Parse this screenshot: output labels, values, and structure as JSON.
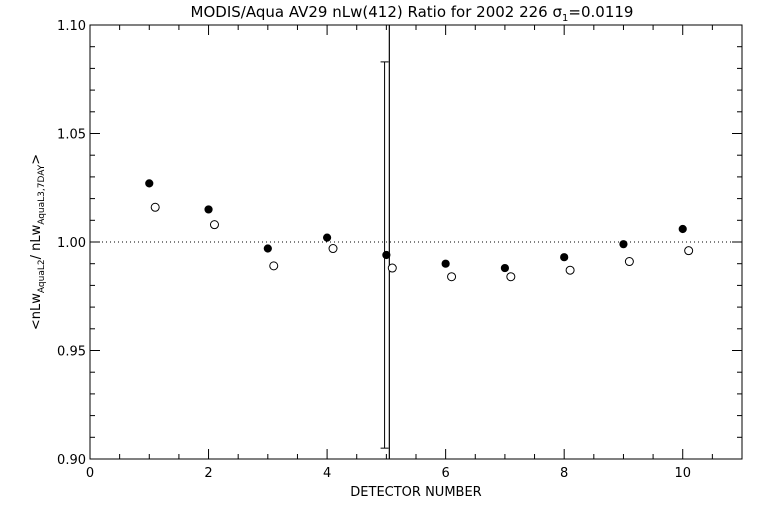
{
  "chart_data": {
    "type": "scatter",
    "title": {
      "prefix": "MODIS/Aqua AV29 nLw(412) Ratio for 2002 226 ",
      "sigma": "σ",
      "sigma_sub": "1",
      "suffix": "=0.0119"
    },
    "xlabel": "DETECTOR NUMBER",
    "ylabel": {
      "prefix": "<nLw",
      "sub1": "AquaL2",
      "middle": "/ nLw",
      "sub2": "AquaL3,7DAY",
      "suffix": ">"
    },
    "xlim": [
      0,
      11
    ],
    "ylim": [
      0.9,
      1.1
    ],
    "xticks": [
      0,
      2,
      4,
      6,
      8,
      10
    ],
    "xtick_labels": [
      "0",
      "2",
      "4",
      "6",
      "8",
      "10"
    ],
    "yticks": [
      0.9,
      0.95,
      1.0,
      1.05,
      1.1
    ],
    "ytick_labels": [
      "0.90",
      "0.95",
      "1.00",
      "1.05",
      "1.10"
    ],
    "reference_line": 1.0,
    "vertical_line_x": 5.05,
    "error_bar": {
      "x": 4.97,
      "low": 0.905,
      "high": 1.083
    },
    "series": [
      {
        "marker": "filled-circle",
        "x": [
          1,
          2,
          3,
          4,
          5,
          6,
          7,
          8,
          9,
          10
        ],
        "values": [
          1.027,
          1.015,
          0.997,
          1.002,
          0.994,
          0.99,
          0.988,
          0.993,
          0.999,
          1.006
        ]
      },
      {
        "marker": "open-circle",
        "x": [
          1.1,
          2.1,
          3.1,
          4.1,
          5.1,
          6.1,
          7.1,
          8.1,
          9.1,
          10.1
        ],
        "values": [
          1.016,
          1.008,
          0.989,
          0.997,
          0.988,
          0.984,
          0.984,
          0.987,
          0.991,
          0.996
        ]
      }
    ]
  }
}
